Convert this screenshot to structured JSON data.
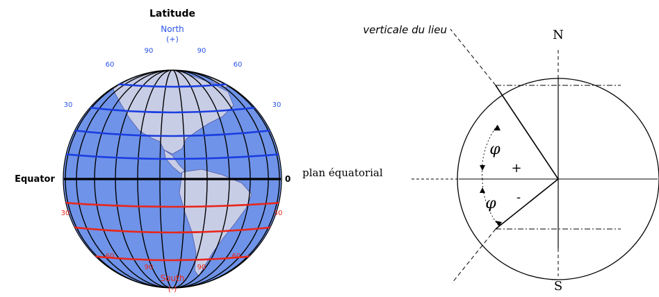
{
  "globe": {
    "title": "Latitude",
    "north_label": "North",
    "north_sign": "(+)",
    "south_label": "South",
    "south_sign": "(-)",
    "equator_label": "Equator",
    "equator_value": "0",
    "north_lat_labels": {
      "p90_left": "90",
      "p90_right": "90",
      "p60_left": "60",
      "p60_right": "60",
      "p30_left": "30",
      "p30_right": "30"
    },
    "south_lat_labels": {
      "p30_left": "30",
      "p30_right": "30",
      "p60_left": "60",
      "p60_right": "60",
      "p90_left": "90",
      "p90_right": "90"
    },
    "colors": {
      "ocean": "#6f93e8",
      "land": "#c8cde6",
      "north_lines": "#1a3de0",
      "south_lines": "#e8261b",
      "equator": "#000000",
      "north_text": "#2a54e8",
      "south_text": "#e8261b"
    }
  },
  "section": {
    "vertical_label": "verticale du lieu",
    "plane_label": "plan équatorial",
    "north_label": "N",
    "south_label": "S",
    "plus_sign": "+",
    "minus_sign": "-",
    "phi_symbol": "φ"
  }
}
